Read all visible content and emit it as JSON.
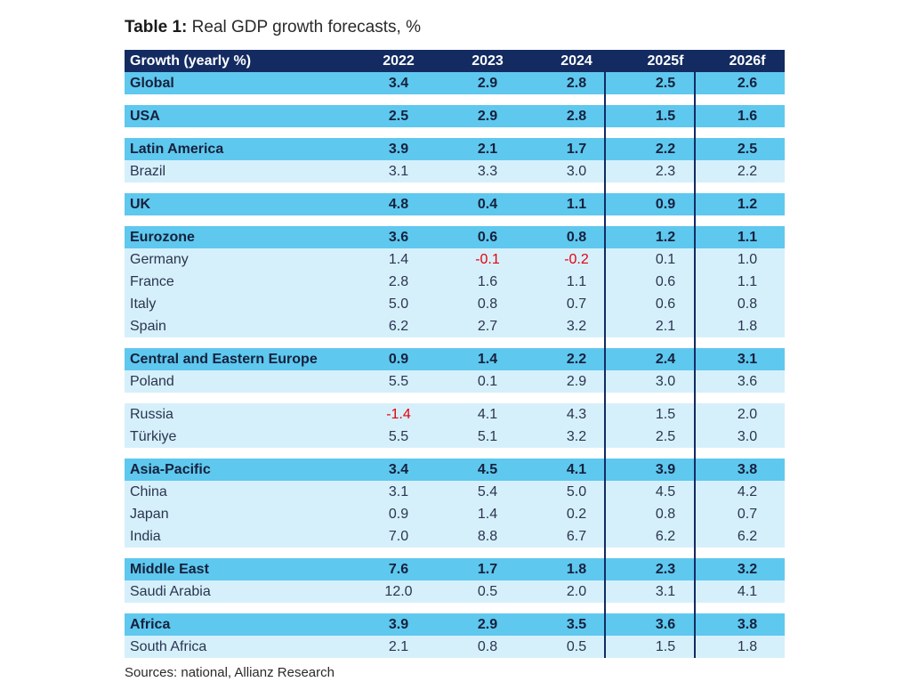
{
  "title": {
    "bold": "Table 1:",
    "rest": " Real GDP growth forecasts, %"
  },
  "source": "Sources: national, Allianz Research",
  "colors": {
    "header": "#132b61",
    "group": "#5fc8ee",
    "sub": "#d6f0fb",
    "negative": "#e5000a"
  },
  "chart_data": {
    "type": "table",
    "title": "Table 1: Real GDP growth forecasts, %",
    "columns": [
      "Growth (yearly %)",
      "2022",
      "2023",
      "2024",
      "2025f",
      "2026f"
    ],
    "rows": [
      {
        "kind": "group",
        "cells": [
          "Global",
          "3.4",
          "2.9",
          "2.8",
          "2.5",
          "2.6"
        ]
      },
      {
        "kind": "group",
        "cells": [
          "USA",
          "2.5",
          "2.9",
          "2.8",
          "1.5",
          "1.6"
        ]
      },
      {
        "kind": "group",
        "cells": [
          "Latin America",
          "3.9",
          "2.1",
          "1.7",
          "2.2",
          "2.5"
        ]
      },
      {
        "kind": "sub",
        "cells": [
          "Brazil",
          "3.1",
          "3.3",
          "3.0",
          "2.3",
          "2.2"
        ]
      },
      {
        "kind": "group",
        "cells": [
          "UK",
          "4.8",
          "0.4",
          "1.1",
          "0.9",
          "1.2"
        ]
      },
      {
        "kind": "group",
        "cells": [
          "Eurozone",
          "3.6",
          "0.6",
          "0.8",
          "1.2",
          "1.1"
        ]
      },
      {
        "kind": "sub",
        "cells": [
          "Germany",
          "1.4",
          "-0.1",
          "-0.2",
          "0.1",
          "1.0"
        ]
      },
      {
        "kind": "sub",
        "cells": [
          "France",
          "2.8",
          "1.6",
          "1.1",
          "0.6",
          "1.1"
        ]
      },
      {
        "kind": "sub",
        "cells": [
          "Italy",
          "5.0",
          "0.8",
          "0.7",
          "0.6",
          "0.8"
        ]
      },
      {
        "kind": "sub",
        "cells": [
          "Spain",
          "6.2",
          "2.7",
          "3.2",
          "2.1",
          "1.8"
        ]
      },
      {
        "kind": "group",
        "cells": [
          "Central and Eastern Europe",
          "0.9",
          "1.4",
          "2.2",
          "2.4",
          "3.1"
        ]
      },
      {
        "kind": "sub",
        "cells": [
          "Poland",
          "5.5",
          "0.1",
          "2.9",
          "3.0",
          "3.6"
        ]
      },
      {
        "kind": "sub",
        "cells": [
          "Russia",
          "-1.4",
          "4.1",
          "4.3",
          "1.5",
          "2.0"
        ]
      },
      {
        "kind": "sub",
        "cells": [
          "Türkiye",
          "5.5",
          "5.1",
          "3.2",
          "2.5",
          "3.0"
        ]
      },
      {
        "kind": "group",
        "cells": [
          "Asia-Pacific",
          "3.4",
          "4.5",
          "4.1",
          "3.9",
          "3.8"
        ]
      },
      {
        "kind": "sub",
        "cells": [
          "China",
          "3.1",
          "5.4",
          "5.0",
          "4.5",
          "4.2"
        ]
      },
      {
        "kind": "sub",
        "cells": [
          "Japan",
          "0.9",
          "1.4",
          "0.2",
          "0.8",
          "0.7"
        ]
      },
      {
        "kind": "sub",
        "cells": [
          "India",
          "7.0",
          "8.8",
          "6.7",
          "6.2",
          "6.2"
        ]
      },
      {
        "kind": "group",
        "cells": [
          "Middle East",
          "7.6",
          "1.7",
          "1.8",
          "2.3",
          "3.2"
        ]
      },
      {
        "kind": "sub",
        "cells": [
          "Saudi Arabia",
          "12.0",
          "0.5",
          "2.0",
          "3.1",
          "4.1"
        ]
      },
      {
        "kind": "group",
        "cells": [
          "Africa",
          "3.9",
          "2.9",
          "3.5",
          "3.6",
          "3.8"
        ]
      },
      {
        "kind": "sub",
        "cells": [
          "South Africa",
          "2.1",
          "0.8",
          "0.5",
          "1.5",
          "1.8"
        ]
      }
    ]
  }
}
